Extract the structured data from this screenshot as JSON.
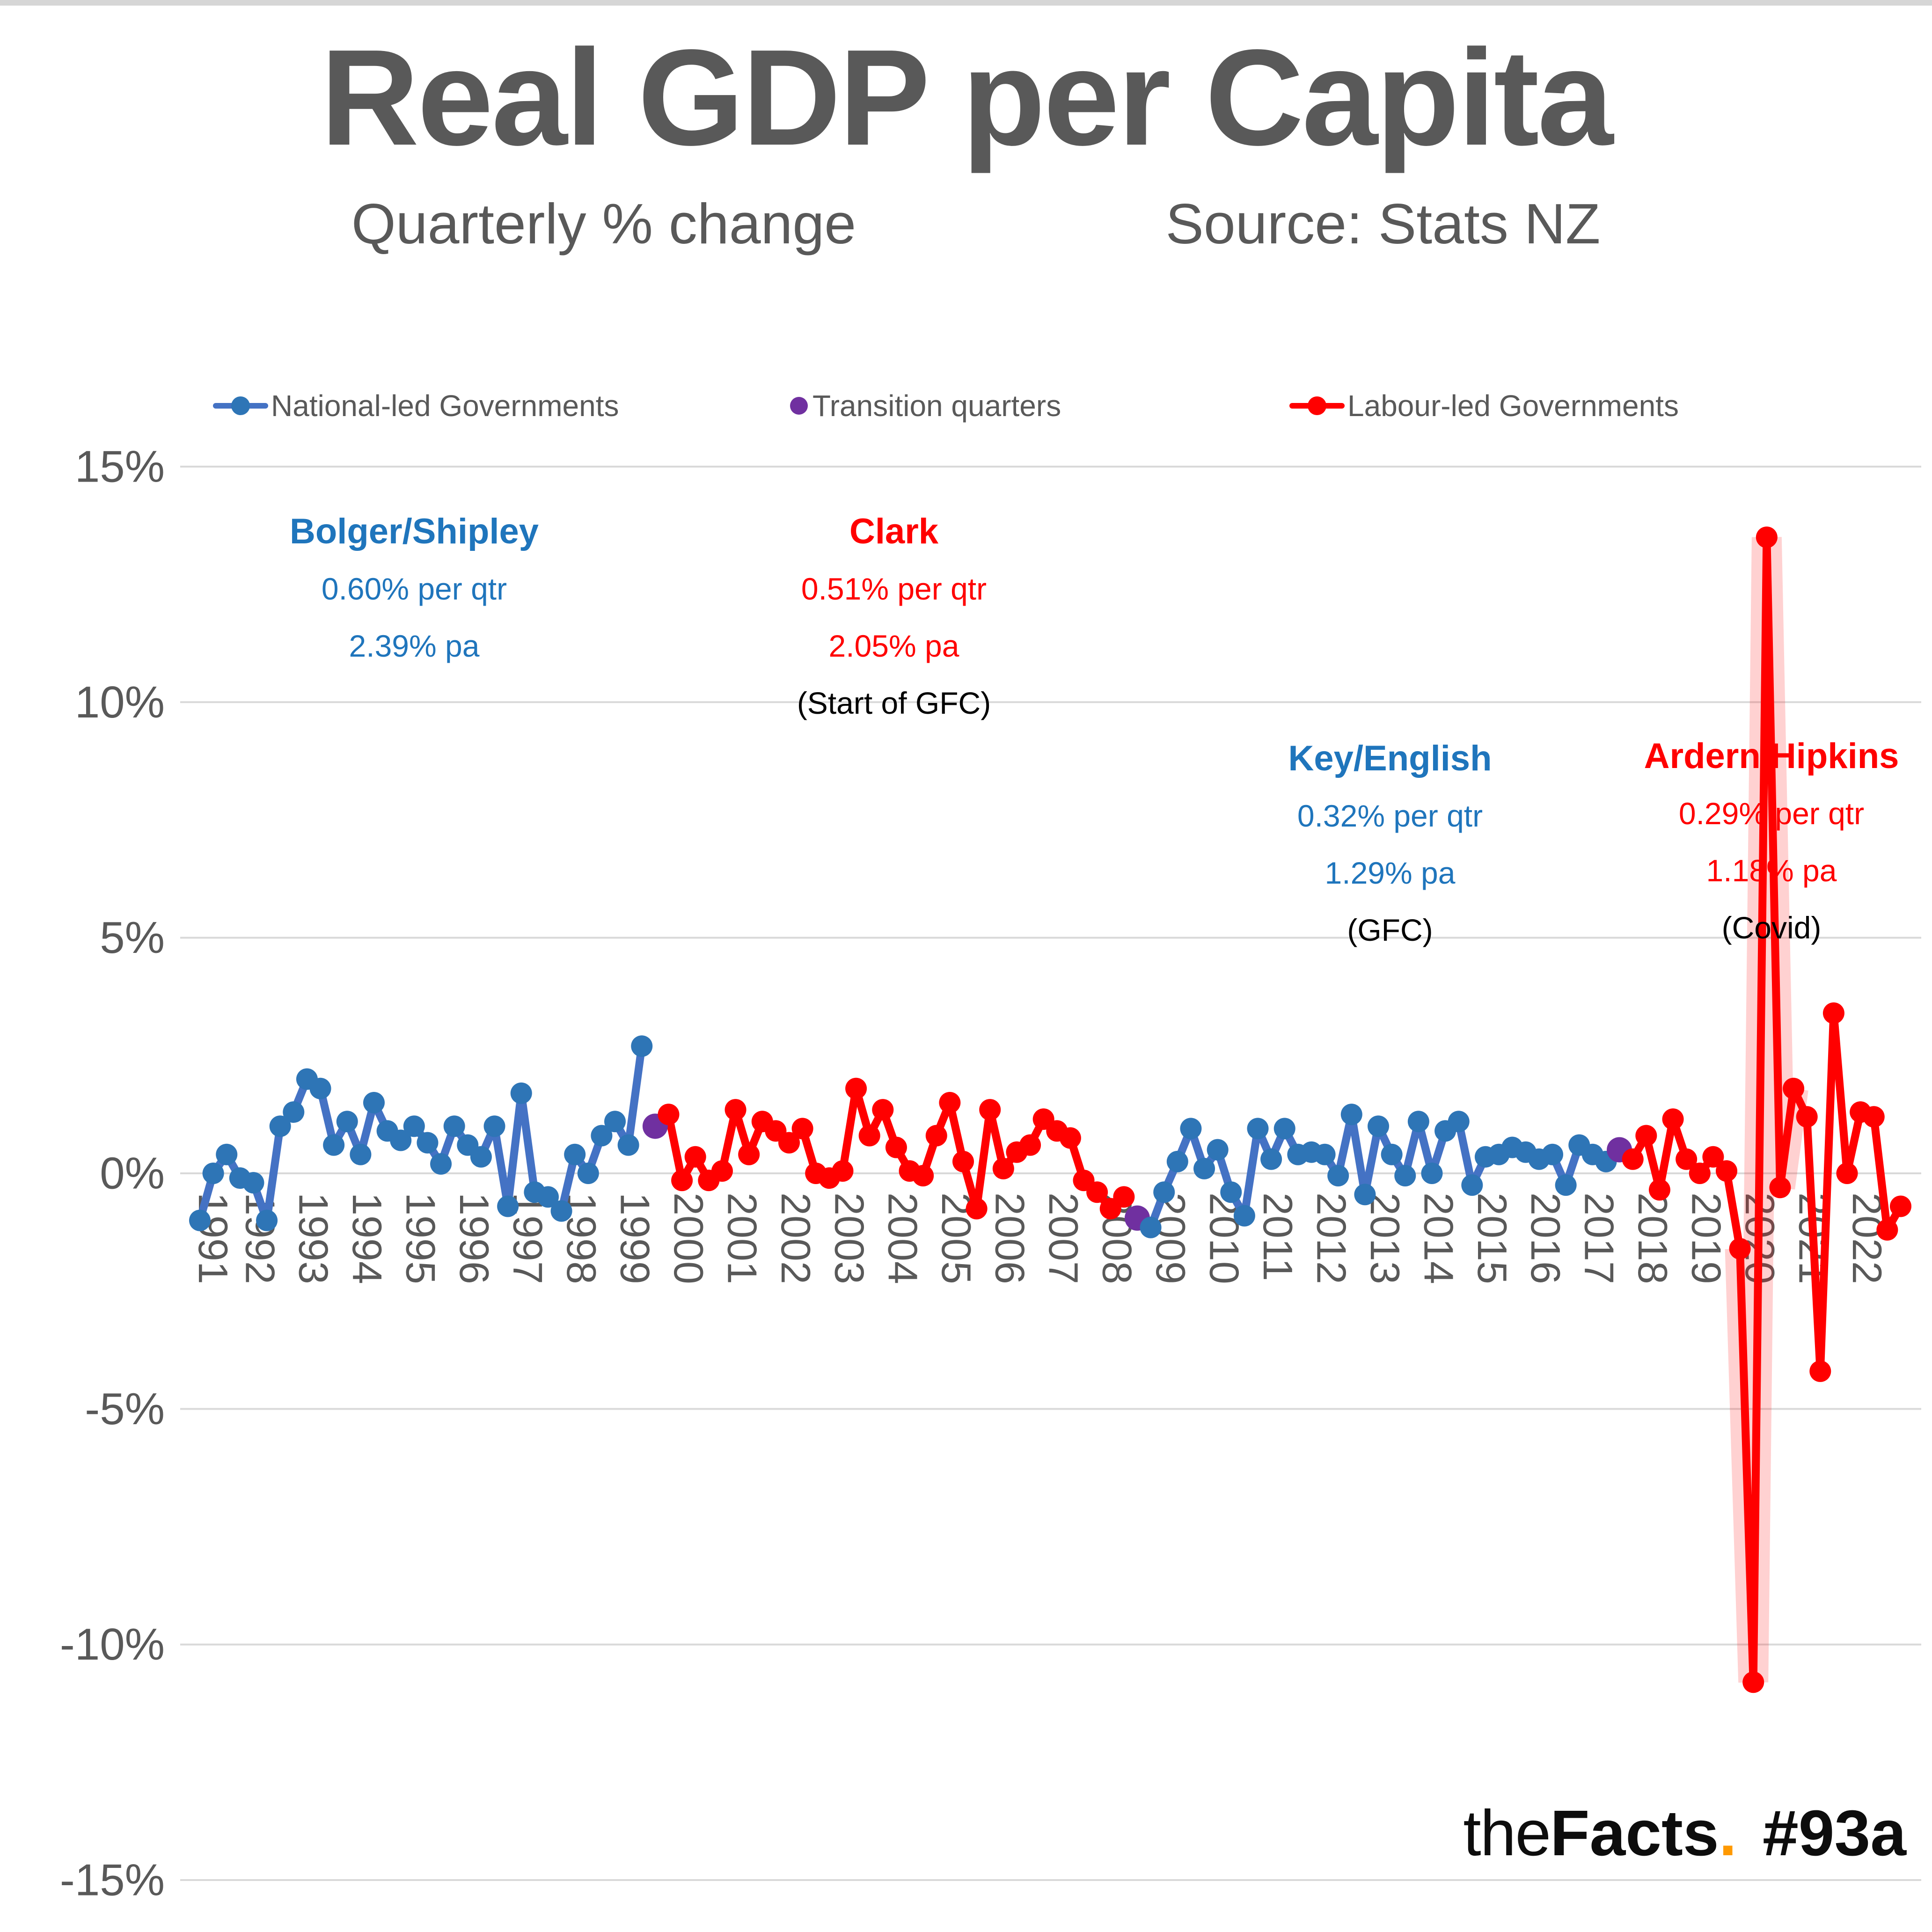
{
  "title": "Real GDP per Capita",
  "subtitle_left": "Quarterly % change",
  "subtitle_right": "Source: Stats NZ",
  "legend": [
    {
      "label": "National-led Governments",
      "marker": "line-dot",
      "color": "#2E75B6"
    },
    {
      "label": "Transition quarters",
      "marker": "dot",
      "color": "#7030A0"
    },
    {
      "label": "Labour-led Governments",
      "marker": "line-dot",
      "color": "#FF0000"
    }
  ],
  "colors": {
    "national_line": "#4472C4",
    "national_marker": "#2E75B6",
    "labour": "#FF0000",
    "transition": "#7030A0",
    "grid": "#D9D9D9",
    "axis_text": "#595959",
    "title_text": "#595959",
    "annotation_blue": "#1F75BC",
    "annotation_red": "#FF0000",
    "logo_orange": "#FF9900"
  },
  "annotations": [
    {
      "name": "Bolger/Shipley",
      "line1": "0.60% per qtr",
      "line2": "2.39% pa",
      "note": "",
      "color": "#1F75BC"
    },
    {
      "name": "Clark",
      "line1": "0.51% per qtr",
      "line2": "2.05% pa",
      "note": "(Start of GFC)",
      "color": "#FF0000"
    },
    {
      "name": "Key/English",
      "line1": "0.32% per qtr",
      "line2": "1.29% pa",
      "note": "(GFC)",
      "color": "#1F75BC"
    },
    {
      "name": "Ardern/Hipkins",
      "line1": "0.29% per qtr",
      "line2": "1.18% pa",
      "note": "(Covid)",
      "color": "#FF0000"
    }
  ],
  "footer": {
    "logo_the": "the",
    "logo_facts": "Facts",
    "logo_dot": ".",
    "logo_tag": "#93a"
  },
  "chart_data": {
    "type": "line",
    "title": "Real GDP per Capita",
    "subtitle": "Quarterly % change",
    "source": "Stats NZ",
    "ylabel": "Quarterly % change",
    "ylim": [
      -15,
      15
    ],
    "ytick_interval": 5,
    "ytick_labels": [
      "15%",
      "10%",
      "5%",
      "0%",
      "-5%",
      "-10%",
      "-15%"
    ],
    "grid": "horizontal",
    "legend_position": "top",
    "x_unit": "quarter",
    "x_start": "1991 Q2",
    "x_end": "2023 Q1",
    "n_quarters": 128,
    "year_labels": [
      "1991",
      "1992",
      "1993",
      "1994",
      "1995",
      "1996",
      "1997",
      "1998",
      "1999",
      "2000",
      "2001",
      "2002",
      "2003",
      "2004",
      "2005",
      "2006",
      "2007",
      "2008",
      "2009",
      "2010",
      "2011",
      "2012",
      "2013",
      "2014",
      "2015",
      "2016",
      "2017",
      "2018",
      "2019",
      "2020",
      "2021",
      "2022"
    ],
    "segments": [
      {
        "name": "National-led Governments (Bolger/Shipley)",
        "color_line": "#4472C4",
        "color_marker": "#2E75B6",
        "start_index": 0,
        "start_quarter": "1991 Q2",
        "end_quarter": "1999 Q3",
        "avg_per_qtr_pct": 0.6,
        "avg_pa_pct": 2.39,
        "values": [
          -1.0,
          0.0,
          0.4,
          -0.1,
          -0.2,
          -1.0,
          1.0,
          1.3,
          2.0,
          1.8,
          0.6,
          1.1,
          0.4,
          1.5,
          0.9,
          0.7,
          1.0,
          0.65,
          0.2,
          1.0,
          0.6,
          0.35,
          1.0,
          -0.7,
          1.7,
          -0.4,
          -0.5,
          -0.8,
          0.4,
          0.0,
          0.8,
          1.1,
          0.6,
          2.7
        ]
      },
      {
        "name": "Transition quarter 1999 Q4",
        "color_line": "#7030A0",
        "color_marker": "#7030A0",
        "marker_only": true,
        "start_index": 34,
        "start_quarter": "1999 Q4",
        "end_quarter": "1999 Q4",
        "values": [
          1.0
        ]
      },
      {
        "name": "Labour-led Governments (Clark)",
        "color_line": "#FF0000",
        "color_marker": "#FF0000",
        "start_index": 35,
        "start_quarter": "2000 Q1",
        "end_quarter": "2008 Q3",
        "avg_per_qtr_pct": 0.51,
        "avg_pa_pct": 2.05,
        "values": [
          1.25,
          -0.15,
          0.35,
          -0.15,
          0.05,
          1.35,
          0.4,
          1.1,
          0.9,
          0.65,
          0.95,
          0.0,
          -0.1,
          0.05,
          1.8,
          0.8,
          1.35,
          0.55,
          0.05,
          -0.05,
          0.8,
          1.5,
          0.25,
          -0.75,
          1.35,
          0.1,
          0.45,
          0.6,
          1.15,
          0.9,
          0.75,
          -0.15,
          -0.4,
          -0.75,
          -0.5
        ]
      },
      {
        "name": "Transition quarter 2008 Q4",
        "color_line": "#7030A0",
        "color_marker": "#7030A0",
        "marker_only": true,
        "start_index": 70,
        "start_quarter": "2008 Q4",
        "end_quarter": "2008 Q4",
        "values": [
          -0.95
        ]
      },
      {
        "name": "National-led Governments (Key/English)",
        "color_line": "#4472C4",
        "color_marker": "#2E75B6",
        "start_index": 71,
        "start_quarter": "2009 Q1",
        "end_quarter": "2017 Q3",
        "avg_per_qtr_pct": 0.32,
        "avg_pa_pct": 1.29,
        "values": [
          -1.15,
          -0.4,
          0.25,
          0.95,
          0.1,
          0.5,
          -0.4,
          -0.9,
          0.95,
          0.3,
          0.95,
          0.4,
          0.45,
          0.4,
          -0.05,
          1.25,
          -0.45,
          1.0,
          0.4,
          -0.05,
          1.1,
          0.0,
          0.9,
          1.1,
          -0.25,
          0.35,
          0.4,
          0.55,
          0.45,
          0.3,
          0.4,
          -0.25,
          0.6,
          0.4,
          0.25
        ]
      },
      {
        "name": "Transition quarter 2017 Q4",
        "color_line": "#7030A0",
        "color_marker": "#7030A0",
        "marker_only": true,
        "start_index": 106,
        "start_quarter": "2017 Q4",
        "end_quarter": "2017 Q4",
        "values": [
          0.5
        ]
      },
      {
        "name": "Labour-led Governments (Ardern/Hipkins)",
        "color_line": "#FF0000",
        "color_marker": "#FF0000",
        "covid_glow": true,
        "start_index": 107,
        "start_quarter": "2018 Q1",
        "end_quarter": "2023 Q1",
        "avg_per_qtr_pct": 0.29,
        "avg_pa_pct": 1.18,
        "values": [
          0.3,
          0.8,
          -0.35,
          1.15,
          0.3,
          0.0,
          0.35,
          0.05,
          -1.6,
          -10.8,
          13.5,
          -0.3,
          1.8,
          1.2,
          -4.2,
          3.4,
          0.0,
          1.3,
          1.2,
          -1.2,
          -0.7
        ]
      }
    ]
  }
}
